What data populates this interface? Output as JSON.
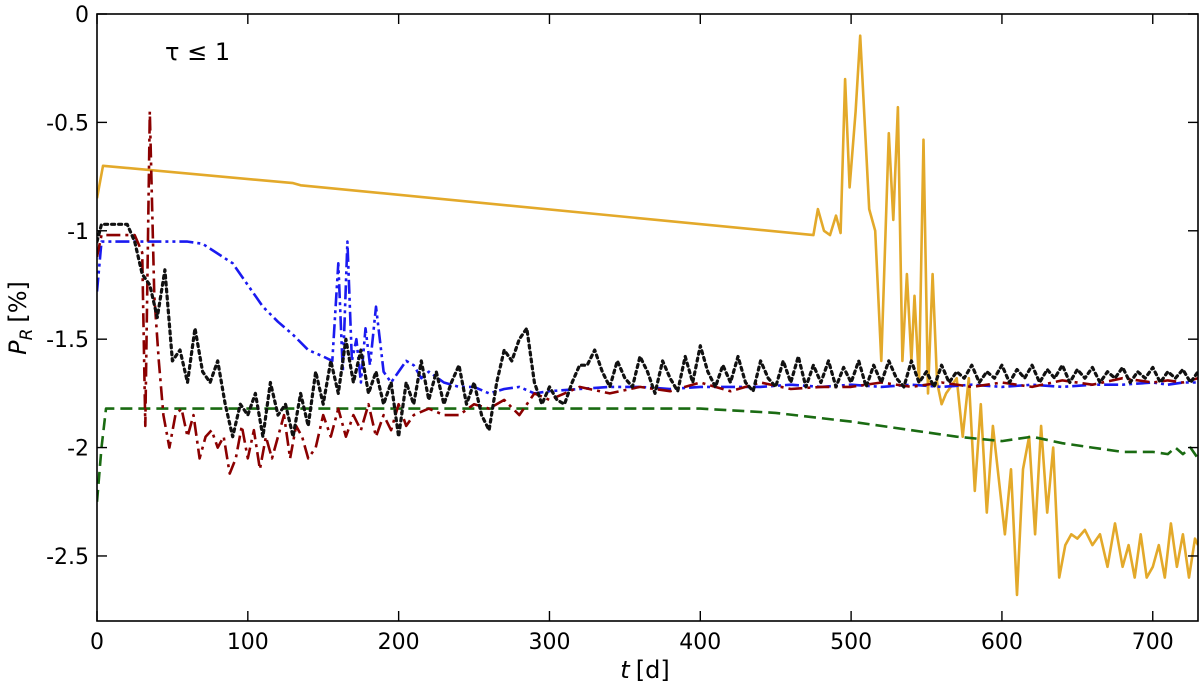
{
  "chart_data": {
    "type": "line",
    "xlabel_var": "t",
    "xlabel_unit": "[d]",
    "ylabel_var": "P",
    "ylabel_sub": "R",
    "ylabel_unit": "[%]",
    "annotation": "τ ≤ 1",
    "xlim": [
      0,
      730
    ],
    "ylim": [
      -2.8,
      0
    ],
    "xticks": [
      0,
      100,
      200,
      300,
      400,
      500,
      600,
      700
    ],
    "yticks": [
      0,
      -0.5,
      -1,
      -1.5,
      -2,
      -2.5
    ],
    "ytick_labels": [
      "0",
      "-0.5",
      "-1",
      "-1.5",
      "-2",
      "-2.5"
    ],
    "grid": false,
    "series": [
      {
        "color": "#e3a92a",
        "style": "solid",
        "x": [
          0,
          4,
          130,
          135,
          475,
          478,
          482,
          486,
          490,
          493,
          496,
          499,
          503,
          506,
          509,
          512,
          516,
          520,
          525,
          528,
          531,
          534,
          537,
          540,
          542,
          545,
          548,
          551,
          554,
          557,
          560,
          563,
          566,
          570,
          574,
          578,
          582,
          586,
          590,
          594,
          598,
          602,
          606,
          610,
          614,
          618,
          622,
          626,
          630,
          634,
          638,
          642,
          646,
          650,
          655,
          660,
          665,
          670,
          675,
          680,
          684,
          688,
          692,
          696,
          700,
          704,
          708,
          712,
          716,
          720,
          724,
          728,
          730
        ],
        "y": [
          -0.85,
          -0.7,
          -0.78,
          -0.79,
          -1.02,
          -0.9,
          -1.0,
          -1.02,
          -0.93,
          -1.01,
          -0.3,
          -0.8,
          -0.45,
          -0.1,
          -0.5,
          -0.9,
          -1.0,
          -1.6,
          -0.55,
          -0.95,
          -0.43,
          -1.6,
          -1.2,
          -1.6,
          -1.3,
          -1.7,
          -0.58,
          -1.75,
          -1.2,
          -1.7,
          -1.8,
          -1.75,
          -1.72,
          -1.68,
          -1.95,
          -1.68,
          -2.2,
          -1.8,
          -2.3,
          -1.9,
          -2.15,
          -2.4,
          -2.1,
          -2.68,
          -2.1,
          -1.95,
          -2.4,
          -1.9,
          -2.3,
          -2.0,
          -2.6,
          -2.45,
          -2.4,
          -2.42,
          -2.38,
          -2.45,
          -2.4,
          -2.55,
          -2.35,
          -2.55,
          -2.45,
          -2.6,
          -2.4,
          -2.6,
          -2.55,
          -2.45,
          -2.6,
          -2.35,
          -2.55,
          -2.4,
          -2.6,
          -2.42,
          -2.45
        ]
      },
      {
        "color": "#1a6b12",
        "style": "dashed",
        "x": [
          0,
          3,
          6,
          100,
          200,
          300,
          400,
          450,
          500,
          540,
          570,
          600,
          620,
          640,
          660,
          680,
          700,
          710,
          715,
          720,
          725,
          730
        ],
        "y": [
          -2.25,
          -2.0,
          -1.82,
          -1.82,
          -1.82,
          -1.82,
          -1.82,
          -1.84,
          -1.88,
          -1.92,
          -1.95,
          -1.97,
          -1.95,
          -1.98,
          -2.0,
          -2.02,
          -2.02,
          -2.03,
          -2.0,
          -2.03,
          -2.0,
          -2.05
        ]
      },
      {
        "color": "#1a1af0",
        "style": "dashdotdot",
        "x": [
          0,
          3,
          5,
          30,
          60,
          70,
          90,
          100,
          110,
          120,
          130,
          140,
          150,
          156,
          160,
          163,
          166,
          169,
          172,
          175,
          178,
          181,
          185,
          190,
          195,
          200,
          205,
          210,
          215,
          220,
          230,
          240,
          250,
          260,
          270,
          280,
          290,
          300,
          320,
          340,
          360,
          380,
          400,
          420,
          440,
          460,
          480,
          500,
          520,
          540,
          560,
          580,
          600,
          620,
          640,
          660,
          680,
          700,
          710,
          720,
          730
        ],
        "y": [
          -1.28,
          -1.05,
          -1.05,
          -1.05,
          -1.05,
          -1.06,
          -1.15,
          -1.25,
          -1.35,
          -1.42,
          -1.48,
          -1.55,
          -1.58,
          -1.6,
          -1.15,
          -1.65,
          -1.05,
          -1.6,
          -1.5,
          -1.7,
          -1.45,
          -1.62,
          -1.35,
          -1.65,
          -1.7,
          -1.65,
          -1.6,
          -1.62,
          -1.68,
          -1.65,
          -1.7,
          -1.72,
          -1.72,
          -1.75,
          -1.73,
          -1.72,
          -1.75,
          -1.74,
          -1.73,
          -1.72,
          -1.72,
          -1.73,
          -1.72,
          -1.72,
          -1.72,
          -1.71,
          -1.72,
          -1.71,
          -1.72,
          -1.71,
          -1.72,
          -1.71,
          -1.72,
          -1.71,
          -1.72,
          -1.71,
          -1.71,
          -1.7,
          -1.71,
          -1.7,
          -1.7
        ]
      },
      {
        "color": "#8b0000",
        "style": "dashdot",
        "x": [
          0,
          3,
          5,
          25,
          30,
          32,
          35,
          38,
          41,
          44,
          48,
          52,
          56,
          60,
          64,
          68,
          72,
          76,
          80,
          84,
          88,
          92,
          96,
          100,
          104,
          108,
          112,
          116,
          120,
          124,
          128,
          132,
          136,
          140,
          145,
          150,
          155,
          160,
          165,
          170,
          175,
          180,
          185,
          190,
          195,
          200,
          205,
          210,
          220,
          230,
          240,
          250,
          260,
          270,
          280,
          290,
          300,
          320,
          340,
          360,
          380,
          400,
          420,
          440,
          460,
          480,
          500,
          520,
          540,
          560,
          580,
          600,
          620,
          640,
          660,
          680,
          700,
          710,
          720,
          730
        ],
        "y": [
          -1.12,
          -1.02,
          -1.02,
          -1.02,
          -1.1,
          -1.9,
          -0.45,
          -1.3,
          -1.6,
          -1.85,
          -2.0,
          -1.85,
          -1.82,
          -1.95,
          -1.85,
          -2.05,
          -1.95,
          -1.92,
          -2.0,
          -1.95,
          -2.12,
          -2.05,
          -1.9,
          -2.05,
          -1.92,
          -2.1,
          -1.95,
          -2.05,
          -1.95,
          -1.85,
          -2.05,
          -1.9,
          -1.95,
          -2.05,
          -2.0,
          -1.85,
          -1.95,
          -1.82,
          -1.95,
          -1.85,
          -1.92,
          -1.8,
          -1.95,
          -1.85,
          -1.92,
          -1.8,
          -1.9,
          -1.85,
          -1.82,
          -1.85,
          -1.85,
          -1.8,
          -1.82,
          -1.78,
          -1.85,
          -1.75,
          -1.78,
          -1.72,
          -1.75,
          -1.72,
          -1.74,
          -1.7,
          -1.74,
          -1.7,
          -1.73,
          -1.72,
          -1.72,
          -1.7,
          -1.72,
          -1.7,
          -1.72,
          -1.7,
          -1.72,
          -1.69,
          -1.71,
          -1.68,
          -1.7,
          -1.69,
          -1.7,
          -1.68
        ]
      },
      {
        "color": "#111111",
        "style": "dotted",
        "x": [
          0,
          3,
          5,
          20,
          25,
          30,
          35,
          40,
          45,
          50,
          55,
          60,
          65,
          70,
          75,
          80,
          85,
          90,
          95,
          100,
          105,
          110,
          115,
          120,
          125,
          130,
          135,
          140,
          145,
          150,
          155,
          160,
          165,
          170,
          175,
          180,
          185,
          190,
          195,
          200,
          205,
          210,
          215,
          220,
          225,
          230,
          235,
          240,
          245,
          250,
          255,
          260,
          265,
          270,
          275,
          280,
          285,
          290,
          295,
          300,
          305,
          310,
          315,
          320,
          325,
          330,
          335,
          340,
          345,
          350,
          355,
          360,
          365,
          370,
          375,
          380,
          385,
          390,
          395,
          400,
          405,
          410,
          415,
          420,
          425,
          430,
          435,
          440,
          445,
          450,
          455,
          460,
          465,
          470,
          475,
          480,
          485,
          490,
          495,
          500,
          505,
          510,
          515,
          520,
          525,
          530,
          535,
          540,
          545,
          550,
          555,
          560,
          565,
          570,
          575,
          580,
          585,
          590,
          595,
          600,
          605,
          610,
          615,
          620,
          625,
          630,
          635,
          640,
          645,
          650,
          655,
          660,
          665,
          670,
          675,
          680,
          685,
          690,
          695,
          700,
          705,
          710,
          715,
          720,
          725,
          730
        ],
        "y": [
          -1.05,
          -0.97,
          -0.97,
          -0.97,
          -1.05,
          -1.2,
          -1.25,
          -1.4,
          -1.18,
          -1.6,
          -1.55,
          -1.7,
          -1.45,
          -1.65,
          -1.7,
          -1.6,
          -1.8,
          -1.95,
          -1.8,
          -1.85,
          -1.75,
          -1.95,
          -1.7,
          -1.85,
          -1.8,
          -1.95,
          -1.75,
          -1.9,
          -1.65,
          -1.8,
          -1.6,
          -1.75,
          -1.5,
          -1.7,
          -1.55,
          -1.75,
          -1.65,
          -1.8,
          -1.7,
          -1.95,
          -1.7,
          -1.8,
          -1.6,
          -1.78,
          -1.65,
          -1.8,
          -1.7,
          -1.62,
          -1.8,
          -1.7,
          -1.85,
          -1.92,
          -1.7,
          -1.55,
          -1.6,
          -1.5,
          -1.45,
          -1.7,
          -1.8,
          -1.72,
          -1.78,
          -1.8,
          -1.7,
          -1.62,
          -1.62,
          -1.55,
          -1.65,
          -1.72,
          -1.6,
          -1.68,
          -1.72,
          -1.58,
          -1.65,
          -1.75,
          -1.6,
          -1.68,
          -1.74,
          -1.58,
          -1.7,
          -1.53,
          -1.65,
          -1.72,
          -1.62,
          -1.7,
          -1.58,
          -1.7,
          -1.74,
          -1.6,
          -1.68,
          -1.72,
          -1.6,
          -1.7,
          -1.58,
          -1.72,
          -1.62,
          -1.7,
          -1.6,
          -1.72,
          -1.63,
          -1.7,
          -1.6,
          -1.72,
          -1.62,
          -1.7,
          -1.6,
          -1.68,
          -1.72,
          -1.6,
          -1.7,
          -1.65,
          -1.72,
          -1.62,
          -1.7,
          -1.65,
          -1.68,
          -1.62,
          -1.7,
          -1.65,
          -1.68,
          -1.62,
          -1.7,
          -1.64,
          -1.68,
          -1.62,
          -1.7,
          -1.64,
          -1.68,
          -1.62,
          -1.7,
          -1.64,
          -1.68,
          -1.63,
          -1.7,
          -1.65,
          -1.68,
          -1.63,
          -1.7,
          -1.65,
          -1.68,
          -1.63,
          -1.7,
          -1.65,
          -1.68,
          -1.64,
          -1.7,
          -1.65
        ]
      }
    ]
  }
}
